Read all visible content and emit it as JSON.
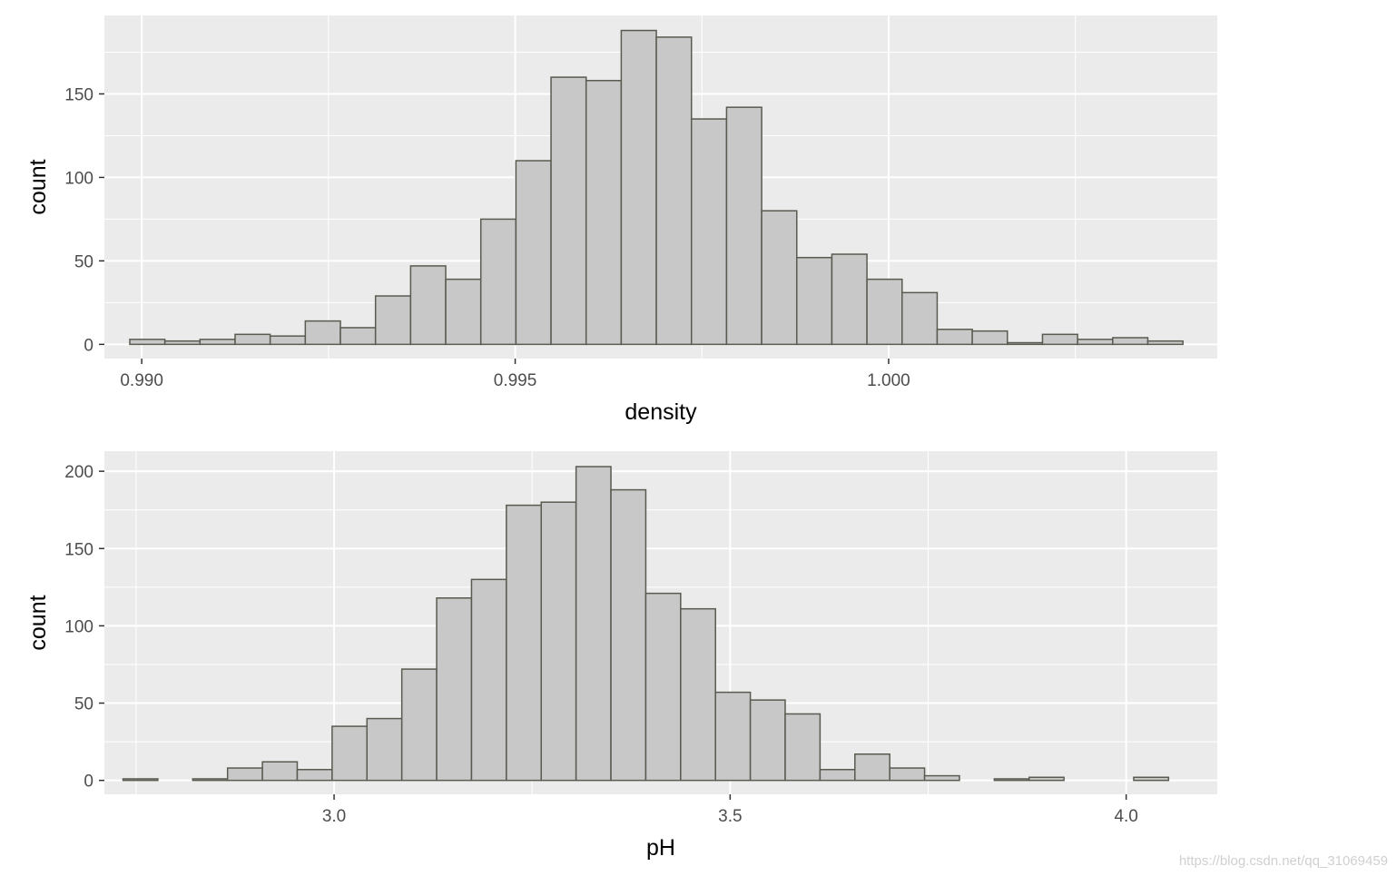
{
  "chart_data": [
    {
      "type": "bar",
      "title": "",
      "xlabel": "density",
      "ylabel": "count",
      "xlim": [
        0.9895,
        1.0044
      ],
      "ylim": [
        -8.5,
        197
      ],
      "x_ticks": [
        0.99,
        0.995,
        1.0
      ],
      "x_tick_labels": [
        "0.990",
        "0.995",
        "1.000"
      ],
      "y_ticks": [
        0,
        50,
        100,
        150
      ],
      "y_tick_labels": [
        "0",
        "50",
        "100",
        "150"
      ],
      "bin_start": 0.98984,
      "bin_width": 0.00047,
      "values": [
        3,
        2,
        3,
        6,
        5,
        14,
        10,
        29,
        47,
        39,
        75,
        110,
        160,
        158,
        188,
        184,
        135,
        142,
        80,
        52,
        54,
        39,
        31,
        9,
        8,
        1,
        6,
        3,
        4,
        2
      ],
      "grid": true,
      "legend": "none",
      "colors": {
        "bar_fill": "#c8c8c8",
        "bar_edge": "#5a5a50",
        "panel": "#ebebeb",
        "grid": "#ffffff"
      }
    },
    {
      "type": "bar",
      "title": "",
      "xlabel": "pH",
      "ylabel": "count",
      "xlim": [
        2.71,
        4.115
      ],
      "ylim": [
        -9,
        213
      ],
      "x_ticks": [
        3.0,
        3.5,
        4.0
      ],
      "x_tick_labels": [
        "3.0",
        "3.5",
        "4.0"
      ],
      "y_ticks": [
        0,
        50,
        100,
        150,
        200
      ],
      "y_tick_labels": [
        "0",
        "50",
        "100",
        "150",
        "200"
      ],
      "bin_start": 2.7335,
      "bin_width": 0.044,
      "values": [
        1,
        0,
        1,
        8,
        12,
        7,
        35,
        40,
        72,
        118,
        130,
        178,
        180,
        203,
        188,
        121,
        111,
        57,
        52,
        43,
        7,
        17,
        8,
        3,
        0,
        1,
        2,
        0,
        0,
        2
      ],
      "grid": true,
      "legend": "none",
      "colors": {
        "bar_fill": "#c8c8c8",
        "bar_edge": "#5a5a50",
        "panel": "#ebebeb",
        "grid": "#ffffff"
      }
    }
  ],
  "watermark": "https://blog.csdn.net/qq_31069459"
}
